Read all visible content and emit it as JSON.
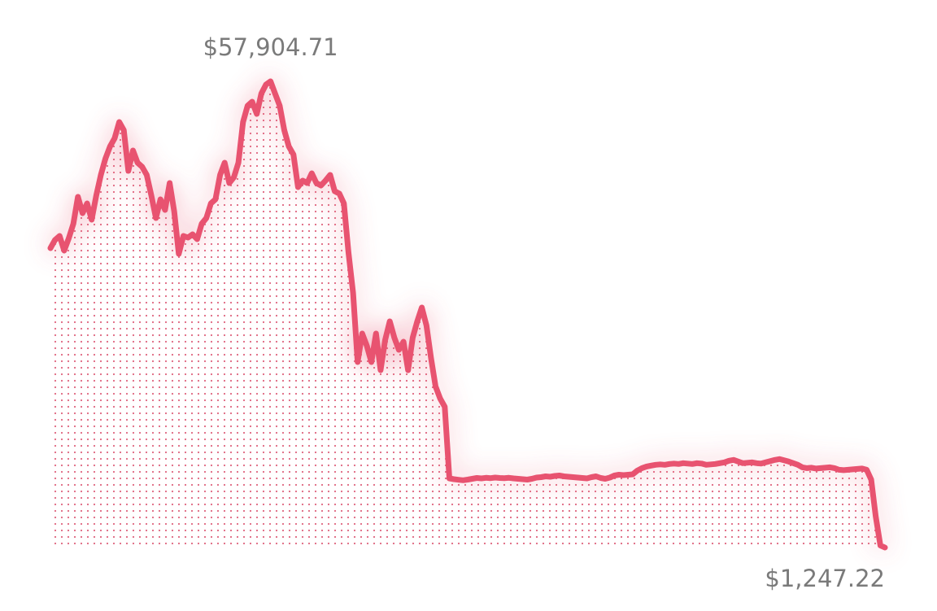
{
  "chart_data": {
    "type": "line",
    "color": "#e8536f",
    "values": [
      37635,
      38624,
      39118,
      37338,
      38821,
      40601,
      43864,
      41887,
      43073,
      41096,
      44062,
      46534,
      48512,
      49995,
      50984,
      52961,
      51972,
      47028,
      49500,
      48017,
      47523,
      46534,
      44062,
      41293,
      43568,
      42282,
      45545,
      42084,
      36943,
      39118,
      38920,
      39316,
      38723,
      40601,
      41293,
      43073,
      43568,
      46534,
      48017,
      45545,
      46237,
      48017,
      52961,
      54939,
      55433,
      53950,
      56422,
      57510,
      57904.71,
      56422,
      54939,
      51972,
      49995,
      49006,
      45051,
      45842,
      45545,
      46732,
      45545,
      45249,
      45842,
      46534,
      44556,
      44260,
      43073,
      37140,
      32196,
      23792,
      27252,
      25769,
      23792,
      27252,
      22803,
      26461,
      28736,
      26758,
      25275,
      26264,
      22803,
      26758,
      28736,
      30417,
      28241,
      24286,
      20825,
      19342,
      18353,
      9652,
      9550,
      9480,
      9420,
      9500,
      9600,
      9700,
      9650,
      9720,
      9680,
      9750,
      9700,
      9680,
      9720,
      9650,
      9600,
      9550,
      9500,
      9600,
      9750,
      9800,
      9900,
      9850,
      9950,
      10000,
      9900,
      9850,
      9800,
      9750,
      9700,
      9650,
      9800,
      9900,
      9700,
      9600,
      9750,
      10000,
      10100,
      10050,
      10100,
      10150,
      10600,
      10900,
      11100,
      11200,
      11300,
      11350,
      11300,
      11400,
      11450,
      11400,
      11500,
      11450,
      11400,
      11500,
      11450,
      11300,
      11350,
      11400,
      11500,
      11600,
      11800,
      11900,
      11700,
      11500,
      11550,
      11600,
      11500,
      11450,
      11600,
      11750,
      11900,
      12000,
      11850,
      11700,
      11500,
      11300,
      11000,
      10900,
      10950,
      10850,
      10900,
      10950,
      11000,
      10900,
      10700,
      10650,
      10700,
      10750,
      10800,
      10850,
      10700,
      9500,
      5000,
      1500,
      1247.22
    ],
    "annotations": [
      {
        "label": "$57,904.71",
        "value": 57904.71
      },
      {
        "label": "$1,247.22",
        "value": 1247.22
      }
    ]
  }
}
